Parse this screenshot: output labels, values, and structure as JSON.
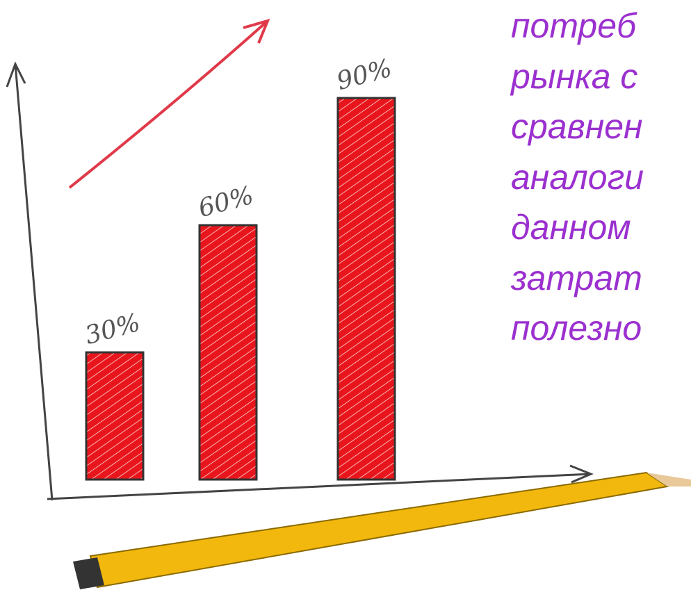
{
  "chart_data": {
    "type": "bar",
    "categories": [
      null,
      null,
      null
    ],
    "values": [
      30,
      60,
      90
    ],
    "value_labels": [
      "30%",
      "60%",
      "90%"
    ],
    "color": "#e8161c"
  },
  "text_lines": [
    "потреб",
    "рынка с",
    "сравнен",
    "аналоги",
    "данном",
    "затрат",
    "полезно"
  ]
}
